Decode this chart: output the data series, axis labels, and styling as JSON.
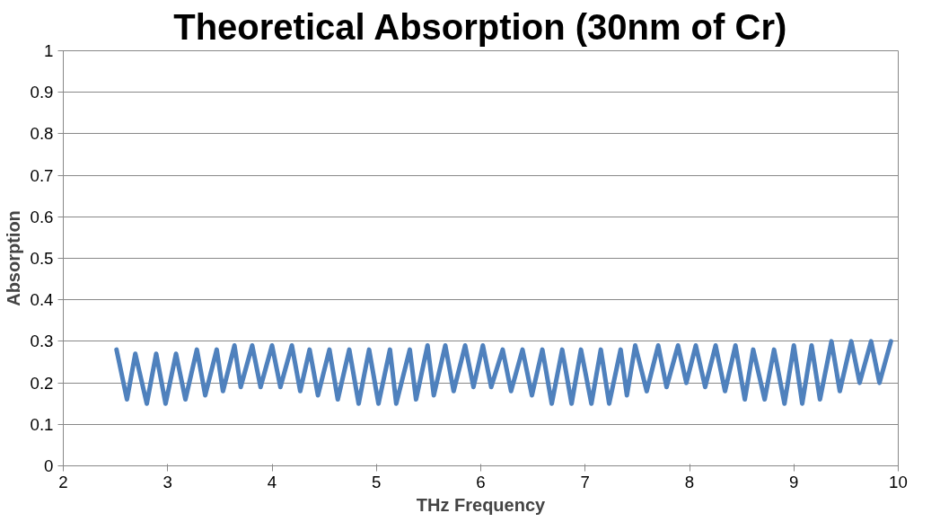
{
  "chart_data": {
    "type": "line",
    "title": "Theoretical Absorption (30nm of Cr)",
    "xlabel": "THz Frequency",
    "ylabel": "Absorption",
    "x": [
      2.51,
      2.61,
      2.69,
      2.8,
      2.89,
      2.98,
      3.08,
      3.17,
      3.28,
      3.36,
      3.47,
      3.53,
      3.64,
      3.7,
      3.81,
      3.89,
      4.0,
      4.08,
      4.19,
      4.27,
      4.36,
      4.44,
      4.55,
      4.63,
      4.74,
      4.83,
      4.93,
      5.02,
      5.13,
      5.19,
      5.32,
      5.38,
      5.49,
      5.55,
      5.66,
      5.74,
      5.85,
      5.93,
      6.02,
      6.1,
      6.21,
      6.29,
      6.4,
      6.49,
      6.59,
      6.68,
      6.78,
      6.87,
      6.96,
      7.06,
      7.15,
      7.23,
      7.34,
      7.4,
      7.48,
      7.59,
      7.7,
      7.78,
      7.89,
      7.97,
      8.06,
      8.15,
      8.25,
      8.34,
      8.44,
      8.53,
      8.61,
      8.72,
      8.81,
      8.91,
      9.0,
      9.08,
      9.17,
      9.25,
      9.36,
      9.44,
      9.55,
      9.63,
      9.74,
      9.82,
      9.93
    ],
    "series": [
      {
        "color": "#4f81bd",
        "values": [
          0.28,
          0.16,
          0.27,
          0.15,
          0.27,
          0.15,
          0.27,
          0.16,
          0.28,
          0.17,
          0.28,
          0.18,
          0.29,
          0.19,
          0.29,
          0.19,
          0.29,
          0.19,
          0.29,
          0.18,
          0.28,
          0.17,
          0.28,
          0.16,
          0.28,
          0.15,
          0.28,
          0.15,
          0.28,
          0.15,
          0.28,
          0.16,
          0.29,
          0.17,
          0.29,
          0.18,
          0.29,
          0.19,
          0.29,
          0.19,
          0.28,
          0.18,
          0.28,
          0.17,
          0.28,
          0.15,
          0.28,
          0.15,
          0.28,
          0.15,
          0.28,
          0.15,
          0.28,
          0.17,
          0.29,
          0.18,
          0.29,
          0.19,
          0.29,
          0.2,
          0.29,
          0.19,
          0.29,
          0.18,
          0.29,
          0.16,
          0.28,
          0.16,
          0.28,
          0.15,
          0.29,
          0.15,
          0.29,
          0.16,
          0.3,
          0.18,
          0.3,
          0.2,
          0.3,
          0.2,
          0.3
        ]
      }
    ],
    "xlim": [
      2,
      10
    ],
    "xticks": [
      2,
      3,
      4,
      5,
      6,
      7,
      8,
      9,
      10
    ],
    "ylim": [
      0,
      1
    ],
    "yticks": [
      0,
      0.1,
      0.2,
      0.3,
      0.4,
      0.5,
      0.6,
      0.7,
      0.8,
      0.9,
      1
    ],
    "grid": "y",
    "marker": "none",
    "line_style": "solid"
  }
}
